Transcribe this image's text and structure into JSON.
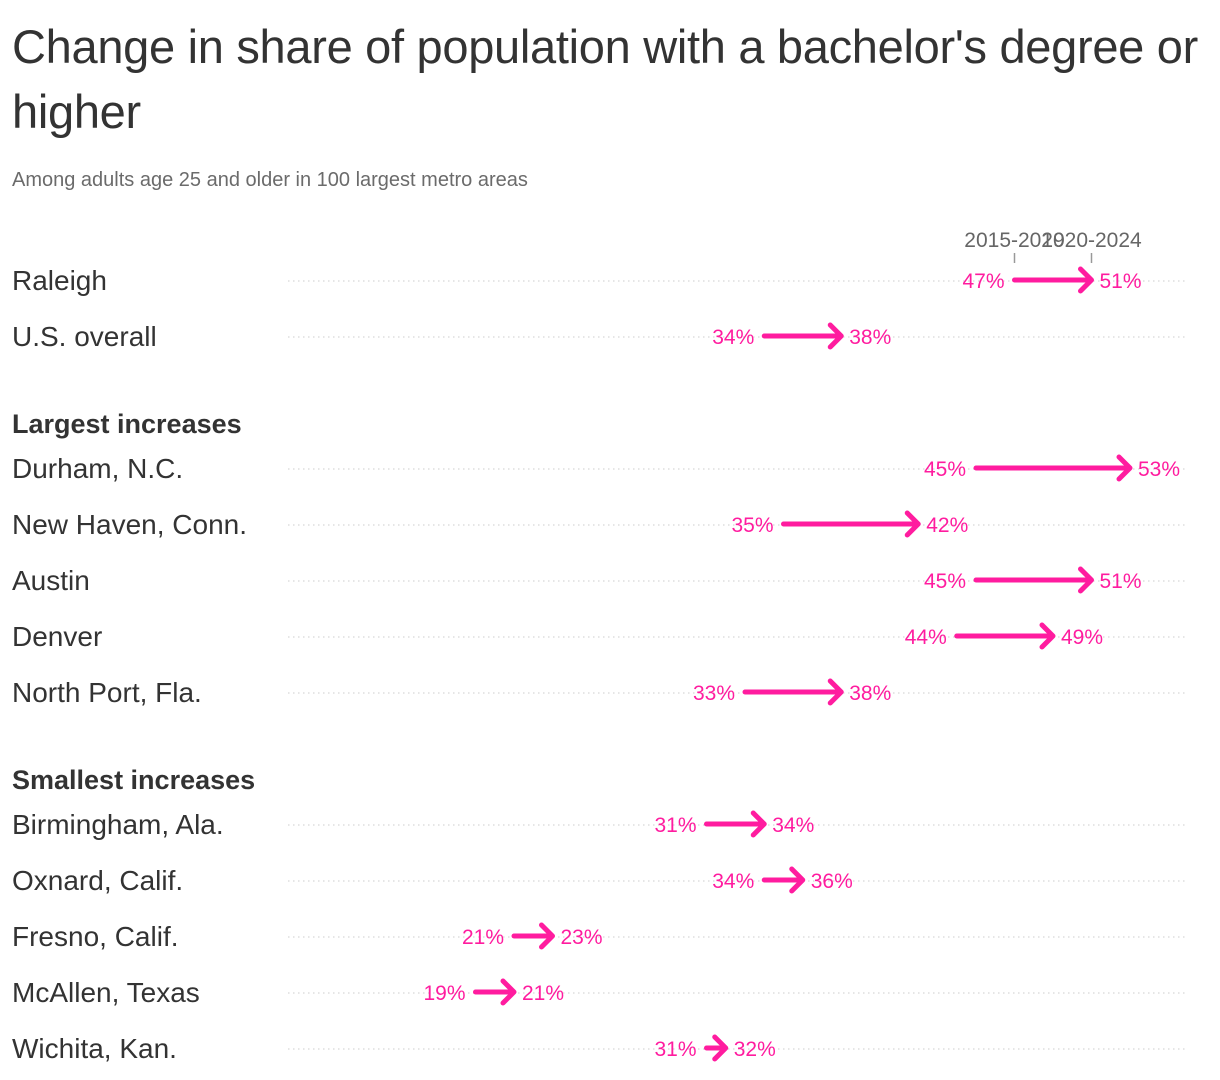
{
  "header": {
    "title": "Change in share of population with a bachelor's degree or higher",
    "subtitle": "Among adults age 25 and older in 100 largest metro areas"
  },
  "colors": {
    "accent": "#ff1c9f",
    "text": "#333333",
    "muted": "#666666",
    "gridline": "#cccccc"
  },
  "chart_data": {
    "type": "arrow-dot",
    "title": "Change in share of population with a bachelor's degree or higher",
    "subtitle": "Among adults age 25 and older in 100 largest metro areas",
    "period_labels": [
      "2015-2019",
      "2020-2024"
    ],
    "value_suffix": "%",
    "rows": [
      {
        "kind": "row",
        "label": "Raleigh",
        "start": 47,
        "end": 51
      },
      {
        "kind": "row",
        "label": "U.S. overall",
        "start": 34,
        "end": 38
      },
      {
        "kind": "group",
        "label": "Largest increases"
      },
      {
        "kind": "row",
        "label": "Durham, N.C.",
        "start": 45,
        "end": 53
      },
      {
        "kind": "row",
        "label": "New Haven, Conn.",
        "start": 35,
        "end": 42
      },
      {
        "kind": "row",
        "label": "Austin",
        "start": 45,
        "end": 51
      },
      {
        "kind": "row",
        "label": "Denver",
        "start": 44,
        "end": 49
      },
      {
        "kind": "row",
        "label": "North Port, Fla.",
        "start": 33,
        "end": 38
      },
      {
        "kind": "group",
        "label": "Smallest increases"
      },
      {
        "kind": "row",
        "label": "Birmingham, Ala.",
        "start": 31,
        "end": 34
      },
      {
        "kind": "row",
        "label": "Oxnard, Calif.",
        "start": 34,
        "end": 36
      },
      {
        "kind": "row",
        "label": "Fresno, Calif.",
        "start": 21,
        "end": 23
      },
      {
        "kind": "row",
        "label": "McAllen, Texas",
        "start": 19,
        "end": 21
      },
      {
        "kind": "row",
        "label": "Wichita, Kan.",
        "start": 31,
        "end": 32
      }
    ]
  }
}
